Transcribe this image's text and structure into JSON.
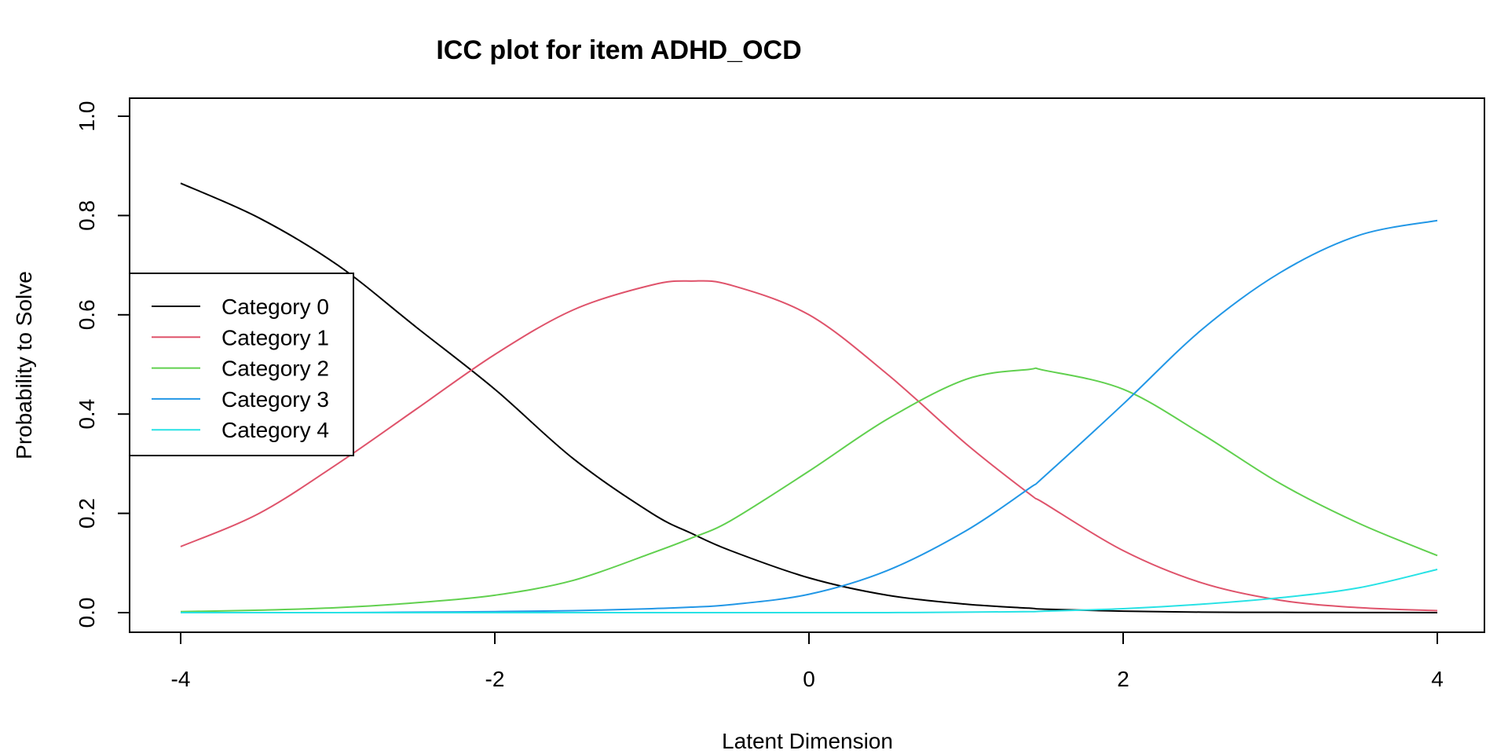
{
  "chart_data": {
    "type": "line",
    "title": "ICC plot for item ADHD_OCD",
    "xlabel": "Latent Dimension",
    "ylabel": "Probability to Solve",
    "xlim": [
      -4,
      4
    ],
    "ylim": [
      0,
      1
    ],
    "x_ticks": [
      "-4",
      "-2",
      "0",
      "2",
      "4"
    ],
    "y_ticks": [
      "0.0",
      "0.2",
      "0.4",
      "0.6",
      "0.8",
      "1.0"
    ],
    "legend_position": "left",
    "x": [
      -4,
      -3.5,
      -3,
      -2.5,
      -2,
      -1.5,
      -1,
      -0.75,
      -0.5,
      0,
      0.5,
      1,
      1.4,
      1.5,
      2,
      2.5,
      3,
      3.5,
      4
    ],
    "series": [
      {
        "name": "Category 0",
        "color": "#000000",
        "values": [
          0.865,
          0.795,
          0.7,
          0.575,
          0.45,
          0.31,
          0.2,
          0.16,
          0.125,
          0.07,
          0.035,
          0.017,
          0.009,
          0.007,
          0.003,
          0.001,
          0.0005,
          0.0002,
          0.0001
        ]
      },
      {
        "name": "Category 1",
        "color": "#DF536B",
        "values": [
          0.133,
          0.2,
          0.3,
          0.41,
          0.52,
          0.61,
          0.66,
          0.668,
          0.66,
          0.6,
          0.48,
          0.34,
          0.24,
          0.22,
          0.125,
          0.06,
          0.025,
          0.01,
          0.004
        ]
      },
      {
        "name": "Category 2",
        "color": "#61D04F",
        "values": [
          0.002,
          0.005,
          0.01,
          0.02,
          0.035,
          0.065,
          0.12,
          0.15,
          0.185,
          0.285,
          0.39,
          0.47,
          0.49,
          0.488,
          0.45,
          0.36,
          0.26,
          0.18,
          0.115
        ]
      },
      {
        "name": "Category 3",
        "color": "#2297E6",
        "values": [
          0.0,
          0.0,
          0.0,
          0.001,
          0.002,
          0.004,
          0.008,
          0.011,
          0.016,
          0.037,
          0.085,
          0.165,
          0.25,
          0.275,
          0.42,
          0.57,
          0.685,
          0.76,
          0.79
        ]
      },
      {
        "name": "Category 4",
        "color": "#28E2E5",
        "values": [
          0.0,
          0.0,
          0.0,
          0.0,
          0.0,
          0.0,
          0.0,
          0.0,
          0.0,
          0.0,
          0.0,
          0.001,
          0.002,
          0.003,
          0.008,
          0.017,
          0.03,
          0.05,
          0.087
        ]
      }
    ]
  }
}
